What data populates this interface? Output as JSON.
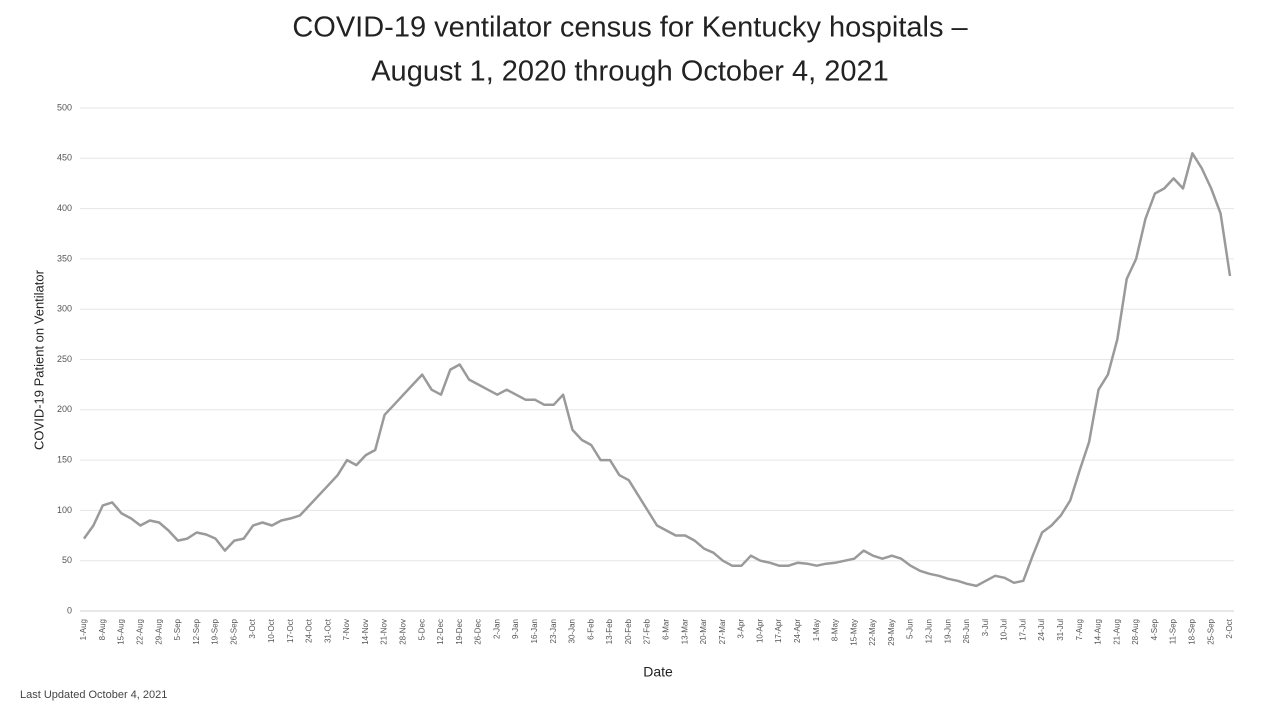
{
  "chart_data": {
    "type": "line",
    "title": [
      "COVID-19 ventilator census for Kentucky hospitals –",
      "August 1, 2020 through October 4, 2021"
    ],
    "x_label": "Date",
    "y_label": "COVID-19 Patient on Ventilator",
    "footnote": "Last Updated October 4, 2021",
    "categories": [
      "1-Aug",
      null,
      "8-Aug",
      null,
      "15-Aug",
      null,
      "22-Aug",
      null,
      "29-Aug",
      null,
      "5-Sep",
      null,
      "12-Sep",
      null,
      "19-Sep",
      null,
      "26-Sep",
      null,
      "3-Oct",
      null,
      "10-Oct",
      null,
      "17-Oct",
      null,
      "24-Oct",
      null,
      "31-Oct",
      null,
      "7-Nov",
      null,
      "14-Nov",
      null,
      "21-Nov",
      null,
      "28-Nov",
      null,
      "5-Dec",
      null,
      "12-Dec",
      null,
      "19-Dec",
      null,
      "26-Dec",
      null,
      "2-Jan",
      null,
      "9-Jan",
      null,
      "16-Jan",
      null,
      "23-Jan",
      null,
      "30-Jan",
      null,
      "6-Feb",
      null,
      "13-Feb",
      null,
      "20-Feb",
      null,
      "27-Feb",
      null,
      "6-Mar",
      null,
      "13-Mar",
      null,
      "20-Mar",
      null,
      "27-Mar",
      null,
      "3-Apr",
      null,
      "10-Apr",
      null,
      "17-Apr",
      null,
      "24-Apr",
      null,
      "1-May",
      null,
      "8-May",
      null,
      "15-May",
      null,
      "22-May",
      null,
      "29-May",
      null,
      "5-Jun",
      null,
      "12-Jun",
      null,
      "19-Jun",
      null,
      "26-Jun",
      null,
      "3-Jul",
      null,
      "10-Jul",
      null,
      "17-Jul",
      null,
      "24-Jul",
      null,
      "31-Jul",
      null,
      "7-Aug",
      null,
      "14-Aug",
      null,
      "21-Aug",
      null,
      "28-Aug",
      null,
      "4-Sep",
      null,
      "11-Sep",
      null,
      "18-Sep",
      null,
      "25-Sep",
      null,
      "2-Oct"
    ],
    "values": [
      72,
      85,
      105,
      108,
      97,
      92,
      85,
      90,
      88,
      80,
      70,
      72,
      78,
      76,
      72,
      60,
      70,
      72,
      85,
      88,
      85,
      90,
      92,
      95,
      105,
      115,
      125,
      135,
      150,
      145,
      155,
      160,
      195,
      205,
      215,
      225,
      235,
      220,
      215,
      240,
      245,
      230,
      225,
      220,
      215,
      220,
      215,
      210,
      210,
      205,
      205,
      215,
      180,
      170,
      165,
      150,
      150,
      135,
      130,
      115,
      100,
      85,
      80,
      75,
      75,
      70,
      62,
      58,
      50,
      45,
      45,
      55,
      50,
      48,
      45,
      45,
      48,
      47,
      45,
      47,
      48,
      50,
      52,
      60,
      55,
      52,
      55,
      52,
      45,
      40,
      37,
      35,
      32,
      30,
      27,
      25,
      30,
      35,
      33,
      28,
      30,
      55,
      78,
      85,
      95,
      110,
      140,
      168,
      220,
      235,
      270,
      330,
      350,
      390,
      415,
      420,
      430,
      420,
      455,
      440,
      420,
      395,
      333
    ],
    "color": "#9a9a9a",
    "ylim": [
      0,
      500
    ],
    "yticks": [
      0,
      50,
      100,
      150,
      200,
      250,
      300,
      350,
      400,
      450,
      500
    ],
    "grid": true
  }
}
